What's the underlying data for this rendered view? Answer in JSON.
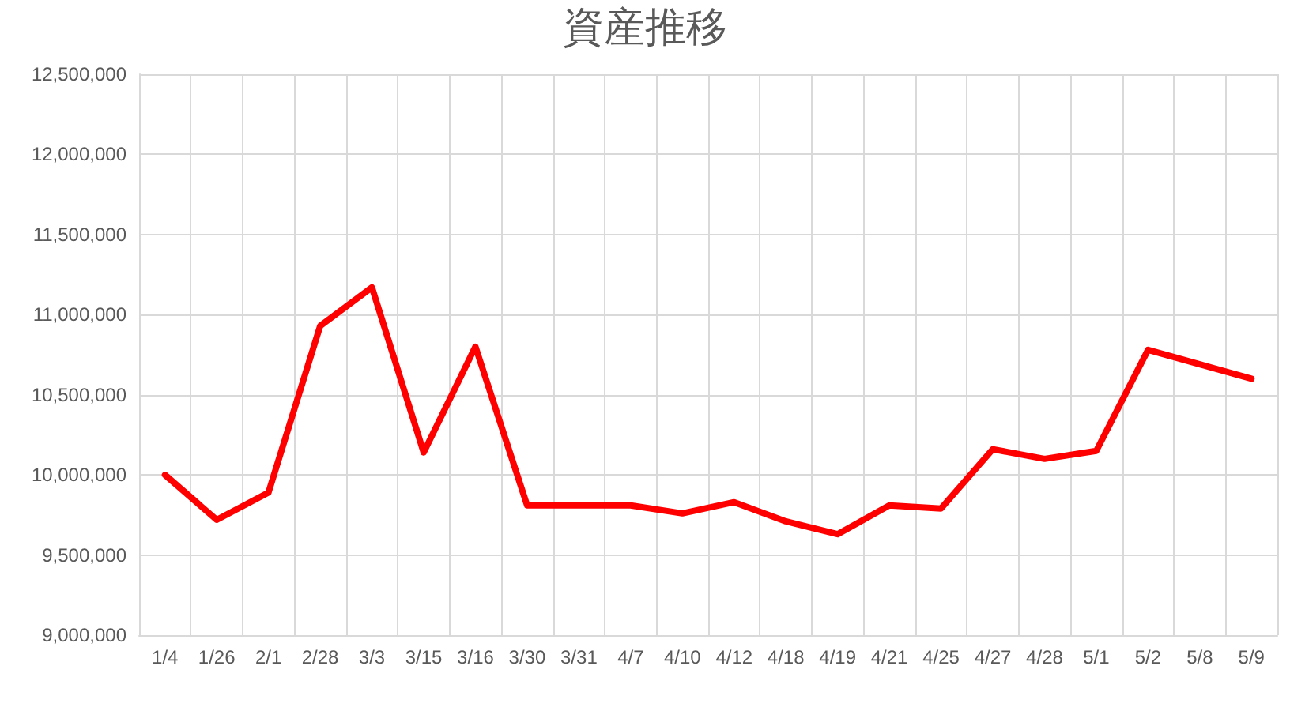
{
  "chart_data": {
    "type": "line",
    "title": "資産推移",
    "categories": [
      "1/4",
      "1/26",
      "2/1",
      "2/28",
      "3/3",
      "3/15",
      "3/16",
      "3/30",
      "3/31",
      "4/7",
      "4/10",
      "4/12",
      "4/18",
      "4/19",
      "4/21",
      "4/25",
      "4/27",
      "4/28",
      "5/1",
      "5/2",
      "5/8",
      "5/9"
    ],
    "series": [
      {
        "color": "#ff0000",
        "values": [
          10000000,
          9720000,
          9890000,
          10930000,
          11170000,
          10140000,
          10800000,
          9810000,
          9810000,
          9810000,
          9760000,
          9830000,
          9710000,
          9630000,
          9810000,
          9790000,
          10160000,
          10100000,
          10150000,
          10780000,
          10690000,
          10600000
        ]
      }
    ],
    "ylim": [
      9000000,
      12500000
    ],
    "yticks": [
      {
        "value": 9000000,
        "label": "9,000,000"
      },
      {
        "value": 9500000,
        "label": "9,500,000"
      },
      {
        "value": 10000000,
        "label": "10,000,000"
      },
      {
        "value": 10500000,
        "label": "10,500,000"
      },
      {
        "value": 11000000,
        "label": "11,000,000"
      },
      {
        "value": 11500000,
        "label": "11,500,000"
      },
      {
        "value": 12000000,
        "label": "12,000,000"
      },
      {
        "value": 12500000,
        "label": "12,500,000"
      }
    ],
    "grid": true,
    "marker": "none",
    "line_style": "solid"
  }
}
